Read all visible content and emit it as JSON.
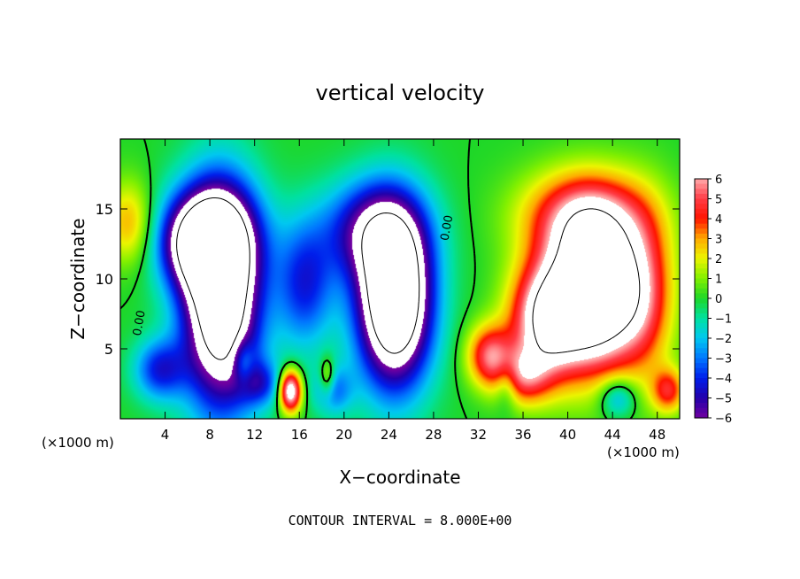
{
  "chart_data": {
    "type": "heatmap",
    "title": "vertical velocity",
    "xlabel": "X−coordinate",
    "ylabel": "Z−coordinate",
    "x_unit": "(×1000 m)",
    "x_unit_right": "(×1000 m)",
    "xlim": [
      0,
      50
    ],
    "ylim": [
      0,
      20
    ],
    "x_ticks": [
      "4",
      "8",
      "12",
      "16",
      "20",
      "24",
      "28",
      "32",
      "36",
      "40",
      "44",
      "48"
    ],
    "x_tick_values": [
      4,
      8,
      12,
      16,
      20,
      24,
      28,
      32,
      36,
      40,
      44,
      48
    ],
    "y_ticks": [
      "5",
      "10",
      "15"
    ],
    "y_tick_values": [
      5,
      10,
      15
    ],
    "colorbar": {
      "labels": [
        "6",
        "5",
        "4",
        "3",
        "2",
        "1",
        "0",
        "−1",
        "−2",
        "−3",
        "−4",
        "−5",
        "−6"
      ],
      "values": [
        6,
        5,
        4,
        3,
        2,
        1,
        0,
        -1,
        -2,
        -3,
        -4,
        -5,
        -6
      ],
      "range": [
        -6,
        6
      ]
    },
    "contour_labels": [
      {
        "text": "0.00",
        "x": 2,
        "z": 6.8
      },
      {
        "text": "0.00",
        "x": 29.5,
        "z": 13.6
      }
    ],
    "contour_interval_text": "CONTOUR INTERVAL =  8.000E+00",
    "features": [
      {
        "kind": "downdraft",
        "x": 7.5,
        "z": 7.5,
        "w": -8
      },
      {
        "kind": "downdraft",
        "x": 24.5,
        "z": 7.5,
        "w": -10
      },
      {
        "kind": "updraft",
        "x": 41.5,
        "z": 8,
        "w": 10
      },
      {
        "kind": "updraft",
        "x": 15,
        "z": 2,
        "w": 6
      }
    ],
    "colors": {
      "background": "#ffffff",
      "saturated": "#ffffff",
      "contour": "#000000"
    }
  }
}
